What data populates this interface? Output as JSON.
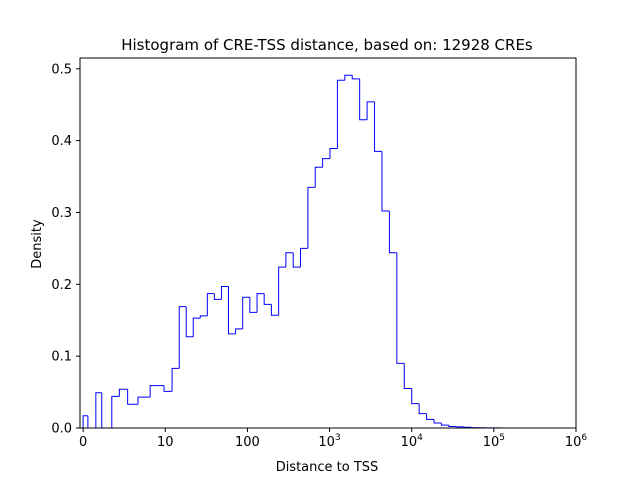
{
  "chart_data": {
    "type": "histogram",
    "title": "Histogram of CRE-TSS distance, based on: 12928 CREs",
    "xlabel": "Distance to TSS",
    "ylabel": "Density",
    "x_scale": "symlog",
    "xlim": [
      -0.38,
      1000000
    ],
    "ylim": [
      0,
      0.515
    ],
    "grid": false,
    "line_color": "#0000ff",
    "x_ticks": [
      {
        "value": 0,
        "base": "0",
        "exp": ""
      },
      {
        "value": 10,
        "base": "10",
        "exp": ""
      },
      {
        "value": 100,
        "base": "100",
        "exp": ""
      },
      {
        "value": 1000,
        "base": "10",
        "exp": "3"
      },
      {
        "value": 10000,
        "base": "10",
        "exp": "4"
      },
      {
        "value": 100000,
        "base": "10",
        "exp": "5"
      },
      {
        "value": 1000000,
        "base": "10",
        "exp": "6"
      }
    ],
    "y_ticks": [
      "0.0",
      "0.1",
      "0.2",
      "0.3",
      "0.4",
      "0.5"
    ],
    "bin_edges": [
      0,
      0.58,
      1.55,
      2.27,
      3.49,
      4.41,
      5.42,
      6.68,
      8.16,
      9.85,
      12.1,
      14.8,
      18.0,
      21.9,
      26.7,
      32.5,
      39.6,
      48.3,
      58.8,
      71.8,
      87.6,
      107,
      131,
      160,
      196,
      240,
      294,
      361,
      443,
      545,
      669,
      823,
      1012,
      1246,
      1533,
      1888,
      2325,
      2863,
      3527,
      4344,
      5352,
      6593,
      8121,
      10001,
      12318,
      15171,
      18689,
      23025,
      28359,
      34937,
      43038,
      53019,
      65317,
      80469,
      99121,
      122110,
      150401,
      185280,
      228234,
      281190,
      346370,
      426725,
      525600
    ],
    "densities": [
      0.017,
      0.0,
      0.049,
      0.0,
      0.044,
      0.054,
      0.033,
      0.043,
      0.059,
      0.051,
      0.083,
      0.169,
      0.127,
      0.153,
      0.156,
      0.187,
      0.179,
      0.197,
      0.131,
      0.138,
      0.182,
      0.161,
      0.187,
      0.172,
      0.157,
      0.224,
      0.244,
      0.224,
      0.25,
      0.335,
      0.363,
      0.375,
      0.389,
      0.484,
      0.491,
      0.486,
      0.429,
      0.454,
      0.385,
      0.302,
      0.244,
      0.09,
      0.055,
      0.034,
      0.02,
      0.012,
      0.007,
      0.004,
      0.002,
      0.0015,
      0.001,
      0.0005,
      0.0003,
      0.0002,
      0.0001,
      5e-05,
      3e-05,
      2e-05,
      1e-05,
      1e-05,
      5e-06,
      2e-06
    ]
  }
}
